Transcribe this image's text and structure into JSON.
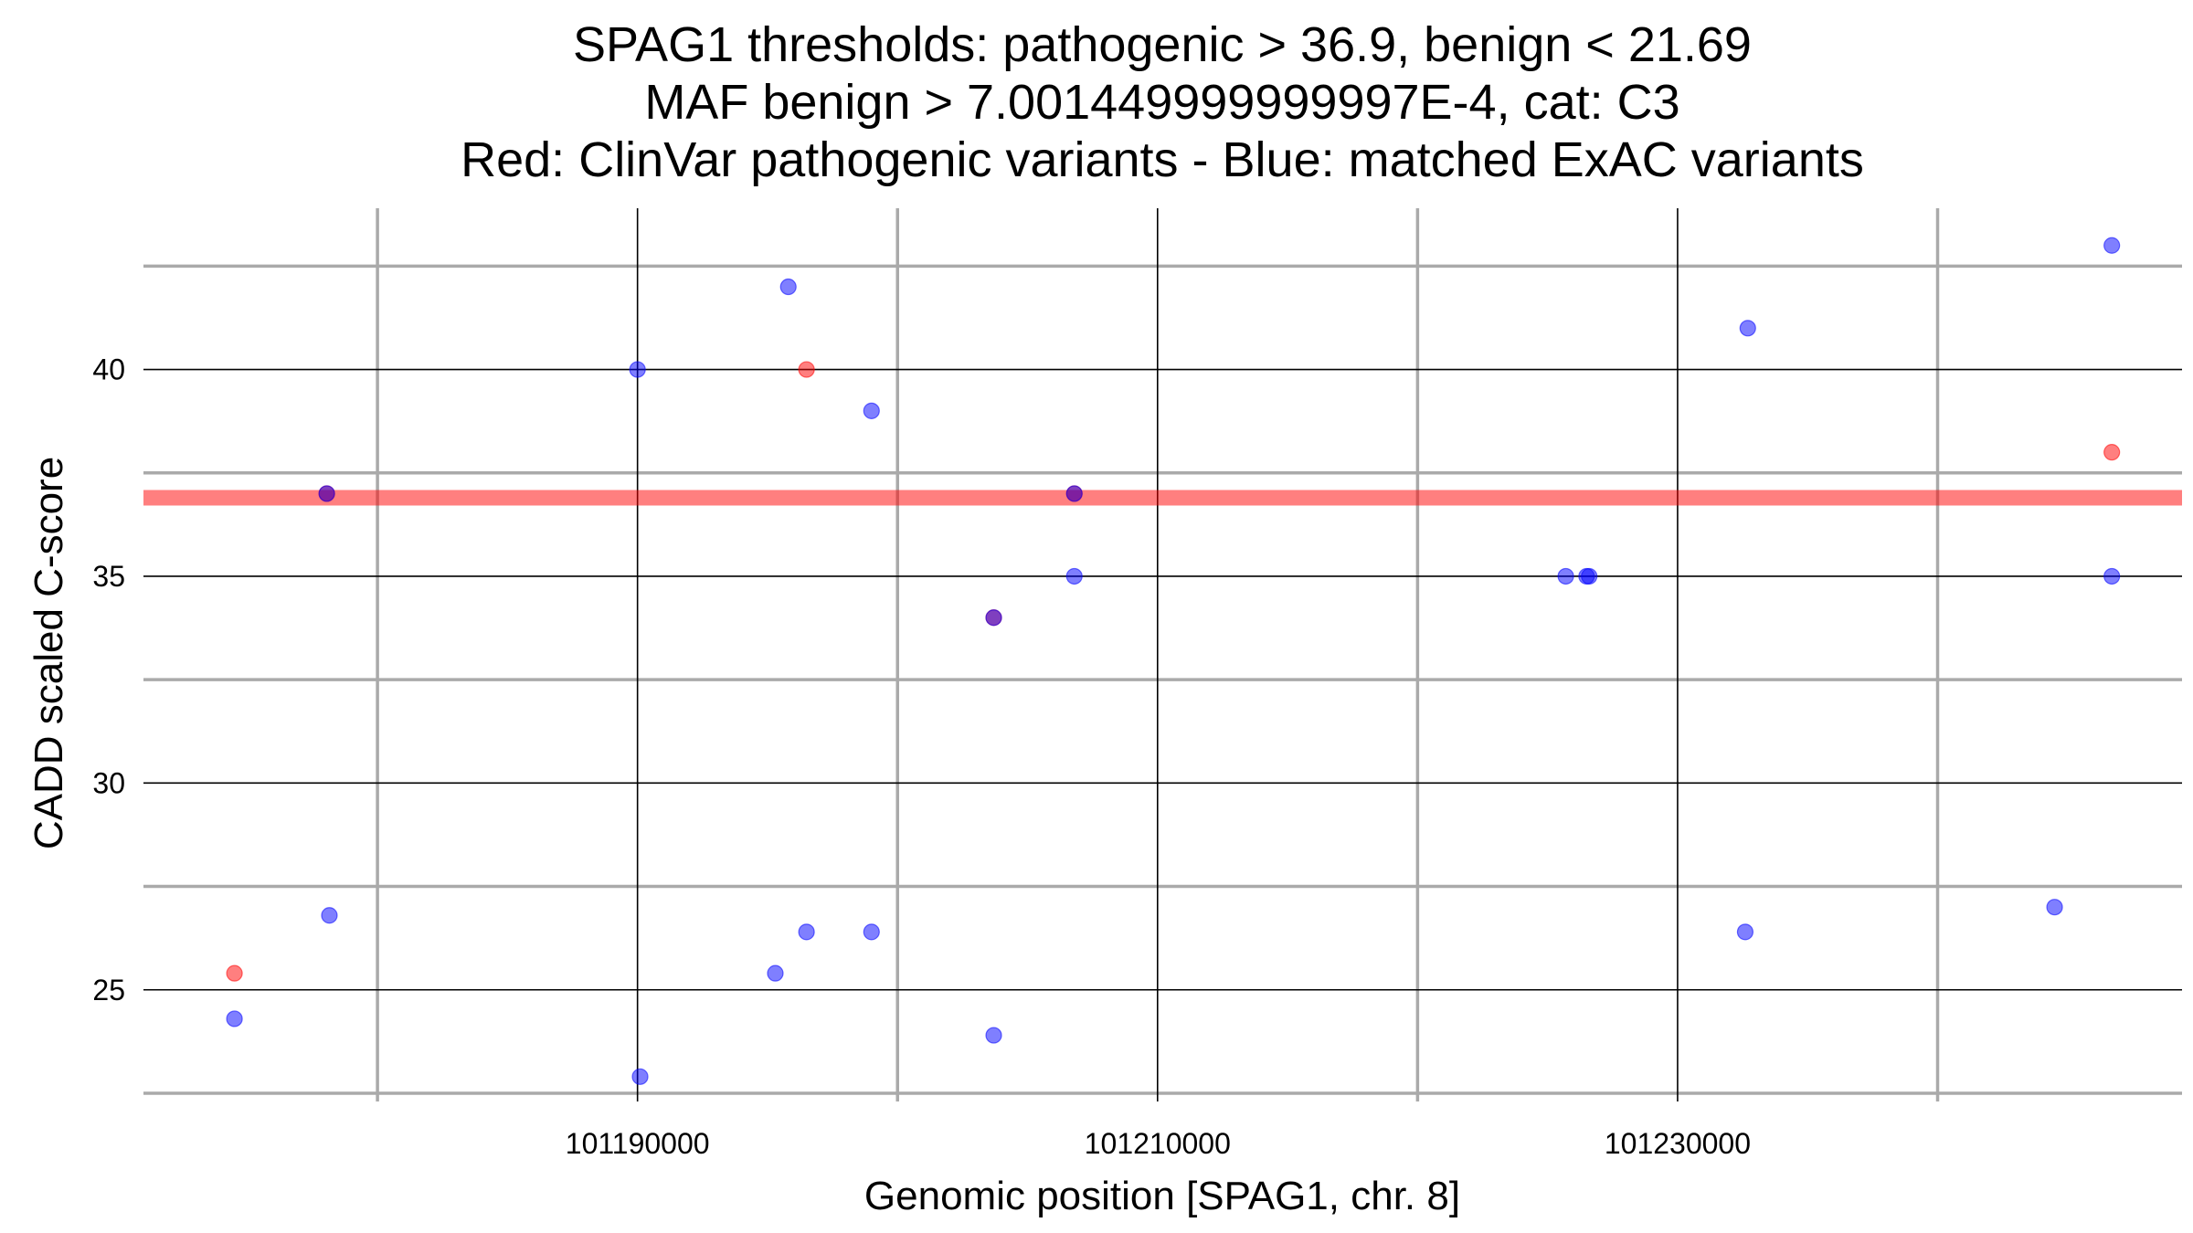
{
  "chart_data": {
    "type": "scatter",
    "title_lines": [
      "SPAG1 thresholds: pathogenic > 36.9, benign < 21.69",
      "MAF benign > 7.001449999999997E-4, cat: C3",
      "Red: ClinVar pathogenic variants - Blue: matched ExAC variants"
    ],
    "xlabel": "Genomic position [SPAG1, chr. 8]",
    "ylabel": "CADD scaled C-score",
    "xlim": [
      101171000,
      101249400
    ],
    "ylim": [
      22.3,
      43.9
    ],
    "x_major_ticks": [
      101190000,
      101210000,
      101230000
    ],
    "x_tick_labels": [
      "101190000",
      "101210000",
      "101230000"
    ],
    "x_minor_ticks": [
      101180000,
      101200000,
      101220000,
      101240000
    ],
    "y_major_ticks": [
      25,
      30,
      35,
      40
    ],
    "y_tick_labels": [
      "25",
      "30",
      "35",
      "40"
    ],
    "y_minor_ticks": [
      22.5,
      27.5,
      32.5,
      37.5,
      42.5
    ],
    "grid": true,
    "threshold_line": {
      "y": 36.9,
      "color": "#ff0000"
    },
    "colors": {
      "pathogenic": "#ff0000",
      "exac": "#0000ff",
      "major_grid": "#000000",
      "minor_grid": "#aaaaaa"
    },
    "series": [
      {
        "name": "ClinVar pathogenic variants",
        "color": "#ff0000",
        "points": [
          {
            "x": 101174500,
            "y": 25.4
          },
          {
            "x": 101178050,
            "y": 37.0
          },
          {
            "x": 101196500,
            "y": 40.0
          },
          {
            "x": 101203700,
            "y": 34.0
          },
          {
            "x": 101206800,
            "y": 37.0
          },
          {
            "x": 101246700,
            "y": 38.0
          }
        ]
      },
      {
        "name": "matched ExAC variants",
        "color": "#0000ff",
        "points": [
          {
            "x": 101174500,
            "y": 24.3
          },
          {
            "x": 101178050,
            "y": 37.0
          },
          {
            "x": 101178150,
            "y": 26.8
          },
          {
            "x": 101190000,
            "y": 40.0
          },
          {
            "x": 101190100,
            "y": 22.9
          },
          {
            "x": 101195300,
            "y": 25.4
          },
          {
            "x": 101195800,
            "y": 42.0
          },
          {
            "x": 101196500,
            "y": 26.4
          },
          {
            "x": 101199000,
            "y": 39.0
          },
          {
            "x": 101199000,
            "y": 26.4
          },
          {
            "x": 101203700,
            "y": 34.0
          },
          {
            "x": 101203700,
            "y": 23.9
          },
          {
            "x": 101206800,
            "y": 37.0
          },
          {
            "x": 101206800,
            "y": 35.0
          },
          {
            "x": 101225700,
            "y": 35.0
          },
          {
            "x": 101226500,
            "y": 35.0
          },
          {
            "x": 101226600,
            "y": 35.0
          },
          {
            "x": 101232600,
            "y": 26.4
          },
          {
            "x": 101232700,
            "y": 41.0
          },
          {
            "x": 101244500,
            "y": 27.0
          },
          {
            "x": 101246700,
            "y": 43.0
          },
          {
            "x": 101246700,
            "y": 35.0
          }
        ]
      }
    ]
  }
}
